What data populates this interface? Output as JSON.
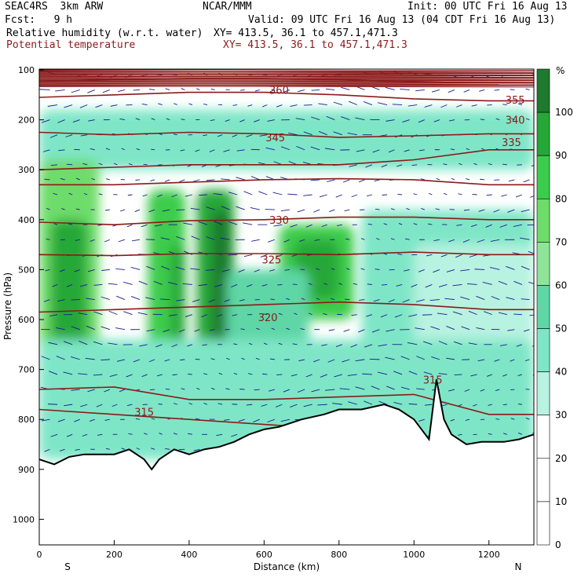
{
  "header": {
    "project": "SEAC4RS  3km ARW",
    "center": "NCAR/MMM",
    "init": "Init: 00 UTC Fri 16 Aug 13",
    "fcst": "Fcst:   9 h",
    "valid": "Valid: 09 UTC Fri 16 Aug 13 (04 CDT Fri 16 Aug 13)",
    "field1": "Relative humidity (w.r.t. water)",
    "field1_xy": "XY= 413.5, 36.1 to 457.1,471.3",
    "field2": "Potential temperature",
    "field2_xy": "XY= 413.5, 36.1 to 457.1,471.3"
  },
  "colors": {
    "theta": "#8b1a1a",
    "wind": "#1a1a8c",
    "terrain": "#000000"
  },
  "chart_data": {
    "type": "heatmap",
    "title": "",
    "xlabel": "Distance (km)",
    "ylabel": "Pressure (hPa)",
    "xlim": [
      0,
      1320
    ],
    "ylim": [
      1050,
      100
    ],
    "x_ticks": [
      "0",
      "200",
      "400",
      "600",
      "800",
      "1000",
      "1200"
    ],
    "y_ticks": [
      "100",
      "200",
      "300",
      "400",
      "500",
      "600",
      "700",
      "800",
      "900",
      "1000"
    ],
    "x_end_labels": {
      "left": "S",
      "right": "N"
    },
    "colorbar": {
      "unit": "%",
      "labels": [
        "100",
        "90",
        "80",
        "70",
        "60",
        "50",
        "40",
        "30",
        "20",
        "10",
        "0"
      ],
      "levels": [
        {
          "min": 100,
          "color": "#1e7a2e"
        },
        {
          "min": 90,
          "color": "#25a838"
        },
        {
          "min": 80,
          "color": "#3ccc4c"
        },
        {
          "min": 70,
          "color": "#6edc6a"
        },
        {
          "min": 60,
          "color": "#8ee59a"
        },
        {
          "min": 50,
          "color": "#5fd6a6"
        },
        {
          "min": 40,
          "color": "#7ee6c6"
        },
        {
          "min": 30,
          "color": "#b8f2e0"
        },
        {
          "min": 20,
          "color": "#ffffff"
        },
        {
          "min": 10,
          "color": "#ffffff"
        },
        {
          "min": 0,
          "color": "#ffffff"
        }
      ]
    },
    "rh_regions": [
      {
        "x0": 0,
        "x1": 1320,
        "p0": 180,
        "p1": 300,
        "rh": 45
      },
      {
        "x0": 0,
        "x1": 160,
        "p0": 280,
        "p1": 700,
        "rh": 75
      },
      {
        "x0": 30,
        "x1": 130,
        "p0": 400,
        "p1": 650,
        "rh": 92
      },
      {
        "x0": 290,
        "x1": 390,
        "p0": 340,
        "p1": 860,
        "rh": 85
      },
      {
        "x0": 350,
        "x1": 390,
        "p0": 450,
        "p1": 750,
        "rh": 98
      },
      {
        "x0": 420,
        "x1": 520,
        "p0": 340,
        "p1": 860,
        "rh": 90
      },
      {
        "x0": 460,
        "x1": 510,
        "p0": 380,
        "p1": 800,
        "rh": 100
      },
      {
        "x0": 640,
        "x1": 840,
        "p0": 410,
        "p1": 600,
        "rh": 88
      },
      {
        "x0": 680,
        "x1": 800,
        "p0": 440,
        "p1": 560,
        "rh": 98
      },
      {
        "x0": 500,
        "x1": 720,
        "p0": 500,
        "p1": 850,
        "rh": 55
      },
      {
        "x0": 860,
        "x1": 1320,
        "p0": 380,
        "p1": 650,
        "rh": 45
      },
      {
        "x0": 1000,
        "x1": 1320,
        "p0": 450,
        "p1": 820,
        "rh": 38
      },
      {
        "x0": 0,
        "x1": 1320,
        "p0": 640,
        "p1": 880,
        "rh": 42
      }
    ],
    "theta_contours": [
      {
        "label": "360",
        "label_x": 640,
        "label_p": 140,
        "p": [
          123,
          120,
          118,
          118,
          120,
          124,
          126,
          126
        ]
      },
      {
        "label": "355",
        "label_x": 1270,
        "label_p": 160,
        "p": [
          155,
          150,
          145,
          145,
          150,
          158,
          162,
          162
        ]
      },
      {
        "label": "345",
        "label_x": 630,
        "label_p": 235,
        "p": [
          225,
          230,
          225,
          228,
          235,
          232,
          228,
          228
        ]
      },
      {
        "label": "340",
        "label_x": 1270,
        "label_p": 200,
        "p": [
          300,
          295,
          290,
          290,
          290,
          280,
          260,
          260
        ]
      },
      {
        "label": "335",
        "label_x": 1260,
        "label_p": 245,
        "p": [
          330,
          330,
          325,
          320,
          318,
          320,
          330,
          330
        ]
      },
      {
        "label": "330",
        "label_x": 640,
        "label_p": 400,
        "p": [
          405,
          410,
          402,
          400,
          395,
          395,
          400,
          400
        ]
      },
      {
        "label": "325",
        "label_x": 620,
        "label_p": 480,
        "p": [
          470,
          472,
          468,
          468,
          470,
          465,
          470,
          470
        ]
      },
      {
        "label": "320",
        "label_x": 610,
        "label_p": 595,
        "p": [
          585,
          580,
          575,
          570,
          565,
          570,
          580,
          580
        ]
      },
      {
        "label": "315",
        "label_x": 1050,
        "label_p": 720,
        "p": [
          740,
          735,
          760,
          760,
          755,
          750,
          790,
          790
        ]
      },
      {
        "label": "315",
        "label_x": 280,
        "label_p": 785,
        "p": [
          780,
          790,
          800,
          810,
          820,
          840,
          860,
          860
        ]
      }
    ],
    "theta_contour_x": [
      0,
      200,
      400,
      600,
      800,
      1000,
      1200,
      1320
    ],
    "terrain": {
      "x": [
        0,
        40,
        80,
        120,
        160,
        200,
        240,
        280,
        300,
        320,
        360,
        400,
        440,
        480,
        520,
        560,
        600,
        640,
        700,
        760,
        800,
        860,
        920,
        960,
        1000,
        1040,
        1060,
        1080,
        1100,
        1140,
        1180,
        1240,
        1280,
        1320
      ],
      "p": [
        880,
        890,
        875,
        870,
        870,
        870,
        860,
        880,
        900,
        880,
        860,
        870,
        860,
        855,
        845,
        830,
        820,
        815,
        800,
        790,
        780,
        780,
        770,
        780,
        800,
        840,
        720,
        800,
        830,
        850,
        845,
        845,
        840,
        830
      ]
    }
  }
}
